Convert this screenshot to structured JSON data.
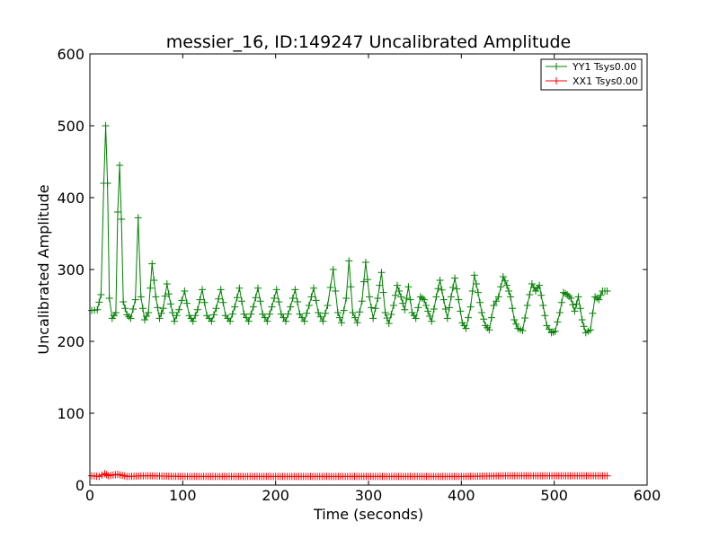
{
  "chart_data": {
    "type": "line",
    "title": "messier_16, ID:149247 Uncalibrated Amplitude",
    "xlabel": "Time (seconds)",
    "ylabel": "Uncalibrated Amplitude",
    "xlim": [
      0,
      600
    ],
    "ylim": [
      0,
      600
    ],
    "xticks": [
      0,
      100,
      200,
      300,
      400,
      500,
      600
    ],
    "yticks": [
      0,
      100,
      200,
      300,
      400,
      500,
      600
    ],
    "grid": false,
    "legend_position": "top-right",
    "series": [
      {
        "name": "YY1 Tsys0.00",
        "color": "#008000",
        "marker": "+",
        "keypoints": [
          [
            2,
            243
          ],
          [
            8,
            244
          ],
          [
            12,
            265
          ],
          [
            15,
            420
          ],
          [
            17,
            500
          ],
          [
            19,
            420
          ],
          [
            21,
            260
          ],
          [
            24,
            232
          ],
          [
            28,
            240
          ],
          [
            30,
            380
          ],
          [
            32,
            445
          ],
          [
            34,
            370
          ],
          [
            36,
            255
          ],
          [
            40,
            237
          ],
          [
            44,
            232
          ],
          [
            49,
            258
          ],
          [
            52,
            372
          ],
          [
            55,
            262
          ],
          [
            59,
            230
          ],
          [
            63,
            240
          ],
          [
            67,
            308
          ],
          [
            71,
            262
          ],
          [
            75,
            232
          ],
          [
            79,
            246
          ],
          [
            83,
            280
          ],
          [
            87,
            252
          ],
          [
            91,
            228
          ],
          [
            96,
            244
          ],
          [
            102,
            270
          ],
          [
            107,
            236
          ],
          [
            111,
            228
          ],
          [
            116,
            244
          ],
          [
            121,
            272
          ],
          [
            126,
            236
          ],
          [
            131,
            228
          ],
          [
            136,
            246
          ],
          [
            141,
            272
          ],
          [
            146,
            236
          ],
          [
            151,
            228
          ],
          [
            156,
            248
          ],
          [
            161,
            274
          ],
          [
            166,
            238
          ],
          [
            171,
            228
          ],
          [
            176,
            248
          ],
          [
            181,
            274
          ],
          [
            186,
            238
          ],
          [
            191,
            228
          ],
          [
            196,
            248
          ],
          [
            201,
            272
          ],
          [
            206,
            238
          ],
          [
            211,
            228
          ],
          [
            216,
            248
          ],
          [
            221,
            272
          ],
          [
            226,
            238
          ],
          [
            231,
            228
          ],
          [
            236,
            250
          ],
          [
            241,
            274
          ],
          [
            246,
            240
          ],
          [
            251,
            228
          ],
          [
            256,
            250
          ],
          [
            262,
            300
          ],
          [
            267,
            240
          ],
          [
            271,
            226
          ],
          [
            276,
            260
          ],
          [
            279,
            312
          ],
          [
            283,
            240
          ],
          [
            288,
            226
          ],
          [
            293,
            256
          ],
          [
            297,
            310
          ],
          [
            301,
            262
          ],
          [
            305,
            232
          ],
          [
            310,
            260
          ],
          [
            314,
            296
          ],
          [
            318,
            240
          ],
          [
            322,
            225
          ],
          [
            327,
            250
          ],
          [
            331,
            278
          ],
          [
            335,
            262
          ],
          [
            339,
            244
          ],
          [
            343,
            276
          ],
          [
            347,
            240
          ],
          [
            351,
            232
          ],
          [
            356,
            262
          ],
          [
            360,
            258
          ],
          [
            364,
            242
          ],
          [
            368,
            228
          ],
          [
            373,
            262
          ],
          [
            377,
            285
          ],
          [
            381,
            258
          ],
          [
            385,
            232
          ],
          [
            389,
            262
          ],
          [
            393,
            288
          ],
          [
            397,
            258
          ],
          [
            401,
            226
          ],
          [
            405,
            218
          ],
          [
            410,
            248
          ],
          [
            414,
            292
          ],
          [
            418,
            268
          ],
          [
            422,
            240
          ],
          [
            426,
            222
          ],
          [
            430,
            216
          ],
          [
            435,
            250
          ],
          [
            440,
            262
          ],
          [
            445,
            290
          ],
          [
            449,
            278
          ],
          [
            453,
            262
          ],
          [
            457,
            230
          ],
          [
            461,
            218
          ],
          [
            466,
            215
          ],
          [
            471,
            250
          ],
          [
            476,
            280
          ],
          [
            480,
            270
          ],
          [
            484,
            278
          ],
          [
            488,
            250
          ],
          [
            492,
            222
          ],
          [
            497,
            212
          ],
          [
            501,
            214
          ],
          [
            506,
            240
          ],
          [
            510,
            268
          ],
          [
            514,
            265
          ],
          [
            518,
            260
          ],
          [
            522,
            242
          ],
          [
            526,
            262
          ],
          [
            530,
            230
          ],
          [
            534,
            212
          ],
          [
            539,
            216
          ],
          [
            544,
            262
          ],
          [
            548,
            258
          ],
          [
            552,
            270
          ],
          [
            557,
            270
          ]
        ]
      },
      {
        "name": "XX1 Tsys0.00",
        "color": "#ff0000",
        "marker": "+",
        "keypoints": [
          [
            2,
            13
          ],
          [
            10,
            12
          ],
          [
            16,
            16
          ],
          [
            20,
            13
          ],
          [
            30,
            15
          ],
          [
            40,
            12
          ],
          [
            60,
            13
          ],
          [
            100,
            12
          ],
          [
            200,
            12
          ],
          [
            300,
            12
          ],
          [
            400,
            12
          ],
          [
            450,
            13
          ],
          [
            500,
            13
          ],
          [
            557,
            13
          ]
        ]
      }
    ]
  }
}
